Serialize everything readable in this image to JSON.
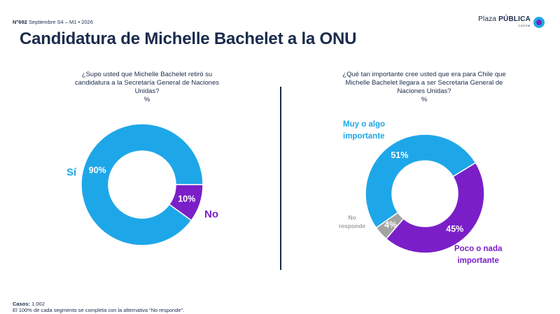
{
  "header": {
    "issue_label": "N°692",
    "issue_detail": "Septiembre S4 – M1 • 2026",
    "logo_main_light": "Plaza",
    "logo_main_bold": "PÚBLICA",
    "logo_sub": "CADEM"
  },
  "title": "Candidatura de Michelle Bachelet a la ONU",
  "charts": [
    {
      "question": "¿Supo usted que Michelle Bachelet retiró su candidatura a la Secretaría General de Naciones Unidas?",
      "unit": "%",
      "labels": {
        "si": "Sí",
        "no": "No"
      }
    },
    {
      "question": "¿Qué tan importante cree usted que era para Chile que Michelle Bachelet llegara a ser Secretaria General de Naciones Unidas?",
      "unit": "%",
      "labels": {
        "muy_1": "Muy o algo",
        "muy_2": "importante",
        "poco_1": "Poco o nada",
        "poco_2": "importante",
        "nr_1": "No",
        "nr_2": "responde"
      }
    }
  ],
  "chart_data": [
    {
      "type": "pie",
      "categories": [
        "Sí",
        "No"
      ],
      "values": [
        90,
        10
      ],
      "value_labels": [
        "90%",
        "10%"
      ],
      "colors": [
        "#1ea7e8",
        "#7a1fc8"
      ],
      "donut": true
    },
    {
      "type": "pie",
      "categories": [
        "Muy o algo importante",
        "Poco o nada importante",
        "No responde"
      ],
      "values": [
        51,
        45,
        4
      ],
      "value_labels": [
        "51%",
        "45%",
        "4%"
      ],
      "colors": [
        "#1ea7e8",
        "#7a1fc8",
        "#a3a3a3"
      ],
      "donut": true
    }
  ],
  "footer": {
    "cases_label": "Casos:",
    "cases_value": "1.002",
    "note": "El 100% de cada segmento se completa con la alternativa “No responde”."
  }
}
